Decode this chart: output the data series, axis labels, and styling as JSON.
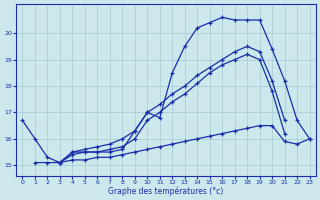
{
  "xlabel": "Graphe des températures (°c)",
  "background_color": "#cce8ed",
  "grid_color": "#a8c8d0",
  "line_color": "#1a2ea8",
  "line_width": 0.9,
  "marker": "+",
  "markersize": 3.5,
  "markeredgewidth": 0.9,
  "xlim": [
    -0.5,
    23.5
  ],
  "ylim": [
    14.6,
    21.1
  ],
  "yticks": [
    15,
    16,
    17,
    18,
    19,
    20
  ],
  "xticks": [
    0,
    1,
    2,
    3,
    4,
    5,
    6,
    7,
    8,
    9,
    10,
    11,
    12,
    13,
    14,
    15,
    16,
    17,
    18,
    19,
    20,
    21,
    22,
    23
  ],
  "series": [
    {
      "x": [
        0,
        1,
        2,
        3,
        4,
        5,
        6,
        7,
        8,
        9,
        10,
        11,
        12,
        13,
        14,
        15,
        16,
        17,
        18,
        19,
        20,
        21,
        22,
        23
      ],
      "y": [
        16.7,
        16.0,
        15.3,
        15.1,
        15.5,
        15.5,
        15.5,
        15.5,
        15.6,
        16.3,
        17.0,
        16.8,
        18.5,
        19.5,
        20.2,
        20.4,
        20.6,
        20.5,
        20.5,
        20.5,
        19.4,
        18.2,
        16.7,
        16.0
      ]
    },
    {
      "x": [
        3,
        4,
        5,
        6,
        7,
        8,
        9,
        10,
        11,
        12,
        13,
        14,
        15,
        16,
        17,
        18,
        19,
        20,
        21,
        22,
        23
      ],
      "y": [
        15.1,
        15.5,
        15.6,
        15.7,
        15.8,
        16.0,
        16.3,
        17.0,
        17.3,
        17.7,
        18.0,
        18.4,
        18.7,
        19.0,
        19.3,
        19.5,
        19.3,
        18.2,
        16.7,
        null,
        null
      ]
    },
    {
      "x": [
        3,
        4,
        5,
        6,
        7,
        8,
        9,
        10,
        11,
        12,
        13,
        14,
        15,
        16,
        17,
        18,
        19,
        20,
        21,
        22,
        23
      ],
      "y": [
        15.1,
        15.4,
        15.5,
        15.5,
        15.6,
        15.7,
        16.0,
        16.7,
        17.0,
        17.4,
        17.7,
        18.1,
        18.5,
        18.8,
        19.0,
        19.2,
        19.0,
        17.8,
        16.2,
        null,
        null
      ]
    },
    {
      "x": [
        1,
        2,
        3,
        4,
        5,
        6,
        7,
        8,
        9,
        10,
        11,
        12,
        13,
        14,
        15,
        16,
        17,
        18,
        19,
        20,
        21,
        22,
        23
      ],
      "y": [
        15.1,
        15.1,
        15.1,
        15.2,
        15.2,
        15.3,
        15.3,
        15.4,
        15.5,
        15.6,
        15.7,
        15.8,
        15.9,
        16.0,
        16.1,
        16.2,
        16.3,
        16.4,
        16.5,
        16.5,
        15.9,
        15.8,
        16.0
      ]
    }
  ]
}
